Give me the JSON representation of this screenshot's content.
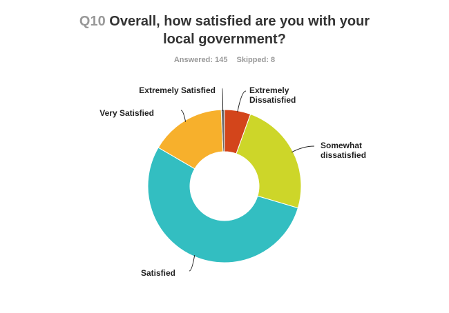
{
  "header": {
    "question_number": "Q10",
    "title_line1": "Overall, how satisfied are you with your",
    "title_line2": "local government?",
    "answered": "Answered: 145",
    "skipped": "Skipped: 8"
  },
  "chart_data": {
    "type": "pie",
    "title": "Q10 Overall, how satisfied are you with your local government?",
    "donut": true,
    "categories": [
      "Extremely Satisfied",
      "Very Satisfied",
      "Satisfied",
      "Somewhat dissatisfied",
      "Extremely Dissatisfied"
    ],
    "values": [
      0.7,
      15.9,
      53.8,
      24.1,
      5.5
    ],
    "colors": [
      "#6b6b6b",
      "#f7b02c",
      "#33bec1",
      "#cdd629",
      "#d3451b"
    ],
    "legend": "labels-outside"
  }
}
